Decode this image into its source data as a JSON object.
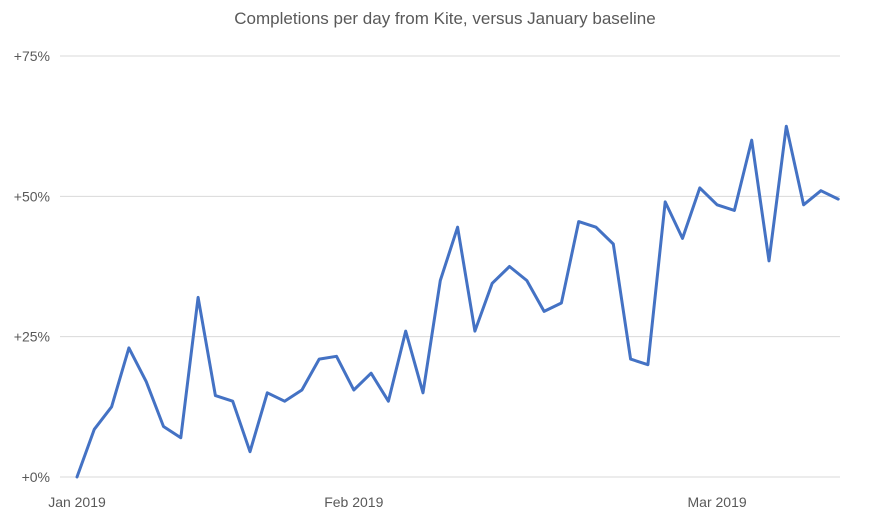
{
  "chart_data": {
    "type": "line",
    "title": "Completions per day from Kite, versus January baseline",
    "xlabel": "",
    "ylabel": "",
    "ylim": [
      0,
      75
    ],
    "grid": true,
    "legend": "none",
    "y_ticks": [
      {
        "value": 0,
        "label": "+0%"
      },
      {
        "value": 25,
        "label": "+25%"
      },
      {
        "value": 50,
        "label": "+50%"
      },
      {
        "value": 75,
        "label": "+75%"
      }
    ],
    "x_ticks": [
      {
        "index": 0,
        "label": "Jan 2019"
      },
      {
        "index": 16,
        "label": "Feb 2019"
      },
      {
        "index": 37,
        "label": "Mar 2019"
      }
    ],
    "series": [
      {
        "color": "#4472c4",
        "values": [
          0,
          8.5,
          12.5,
          23,
          17,
          9,
          7,
          32,
          14.5,
          13.5,
          4.5,
          15,
          13.5,
          15.5,
          21,
          21.5,
          15.5,
          18.5,
          13.5,
          26,
          15,
          35,
          44.5,
          26,
          34.5,
          37.5,
          35,
          29.5,
          31,
          45.5,
          44.5,
          41.5,
          21,
          20,
          49,
          42.5,
          51.5,
          48.5,
          47.5,
          60,
          38.5,
          62.5,
          48.5,
          51,
          49.5
        ]
      }
    ]
  }
}
